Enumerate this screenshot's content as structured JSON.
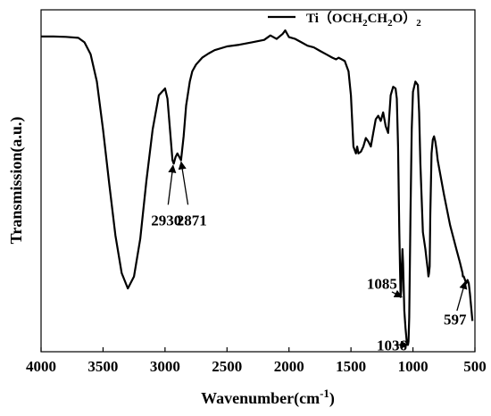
{
  "chart_data": {
    "type": "line",
    "xlabel": "Wavenumber(cm",
    "xlabel_sup": "-1",
    "xlabel_close": ")",
    "ylabel": "Transmission(a.u.)",
    "xlim": [
      4000,
      500
    ],
    "x_ticks": [
      {
        "value": 4000,
        "label": "4000"
      },
      {
        "value": 3500,
        "label": "3500"
      },
      {
        "value": 3000,
        "label": "3000"
      },
      {
        "value": 2500,
        "label": "2500"
      },
      {
        "value": 2000,
        "label": "2000"
      },
      {
        "value": 1500,
        "label": "1500"
      },
      {
        "value": 1000,
        "label": "1000"
      },
      {
        "value": 500,
        "label": "500"
      }
    ],
    "ylim": [
      0,
      1
    ],
    "y_ticks_shown": false,
    "legend": {
      "position": "top-right"
    },
    "series": [
      {
        "name_parts": [
          {
            "t": "Ti（OCH",
            "sub": false
          },
          {
            "t": "2",
            "sub": true
          },
          {
            "t": "CH",
            "sub": false
          },
          {
            "t": "2",
            "sub": true
          },
          {
            "t": "O）",
            "sub": false
          },
          {
            "t": "2",
            "sub": true
          }
        ],
        "color": "#000000",
        "x": [
          4000,
          3900,
          3800,
          3700,
          3650,
          3600,
          3550,
          3500,
          3450,
          3400,
          3350,
          3300,
          3250,
          3200,
          3150,
          3100,
          3050,
          3000,
          2980,
          2960,
          2940,
          2930,
          2915,
          2900,
          2885,
          2871,
          2850,
          2830,
          2800,
          2780,
          2750,
          2700,
          2650,
          2600,
          2500,
          2400,
          2300,
          2200,
          2150,
          2100,
          2050,
          2030,
          2000,
          1950,
          1900,
          1850,
          1800,
          1750,
          1700,
          1650,
          1620,
          1600,
          1550,
          1520,
          1500,
          1480,
          1460,
          1450,
          1440,
          1420,
          1400,
          1380,
          1360,
          1340,
          1320,
          1300,
          1280,
          1260,
          1240,
          1220,
          1200,
          1180,
          1160,
          1140,
          1130,
          1120,
          1110,
          1100,
          1095,
          1090,
          1085,
          1080,
          1070,
          1060,
          1050,
          1045,
          1040,
          1036,
          1030,
          1020,
          1010,
          1000,
          980,
          960,
          950,
          940,
          920,
          900,
          890,
          880,
          875,
          870,
          865,
          860,
          850,
          840,
          830,
          820,
          810,
          800,
          780,
          750,
          700,
          650,
          620,
          600,
          597,
          590,
          580,
          570,
          560,
          550,
          540,
          530,
          520
        ],
        "y": [
          0.922,
          0.922,
          0.921,
          0.918,
          0.905,
          0.87,
          0.79,
          0.65,
          0.49,
          0.34,
          0.23,
          0.185,
          0.22,
          0.33,
          0.5,
          0.65,
          0.75,
          0.77,
          0.74,
          0.65,
          0.56,
          0.55,
          0.57,
          0.58,
          0.57,
          0.56,
          0.63,
          0.72,
          0.79,
          0.82,
          0.84,
          0.86,
          0.872,
          0.882,
          0.893,
          0.898,
          0.905,
          0.912,
          0.925,
          0.915,
          0.93,
          0.94,
          0.92,
          0.915,
          0.905,
          0.895,
          0.89,
          0.88,
          0.87,
          0.86,
          0.855,
          0.86,
          0.85,
          0.82,
          0.75,
          0.6,
          0.58,
          0.6,
          0.58,
          0.585,
          0.6,
          0.625,
          0.615,
          0.6,
          0.64,
          0.68,
          0.69,
          0.675,
          0.7,
          0.66,
          0.64,
          0.75,
          0.775,
          0.77,
          0.74,
          0.6,
          0.35,
          0.16,
          0.18,
          0.25,
          0.3,
          0.26,
          0.12,
          0.07,
          0.03,
          0.02,
          0.02,
          0.03,
          0.1,
          0.4,
          0.65,
          0.76,
          0.79,
          0.78,
          0.7,
          0.55,
          0.35,
          0.3,
          0.27,
          0.24,
          0.22,
          0.23,
          0.25,
          0.4,
          0.58,
          0.62,
          0.63,
          0.615,
          0.59,
          0.56,
          0.52,
          0.46,
          0.37,
          0.3,
          0.26,
          0.23,
          0.22,
          0.22,
          0.21,
          0.2,
          0.21,
          0.2,
          0.17,
          0.13,
          0.09
        ]
      }
    ],
    "annotations": [
      {
        "label": "2930",
        "target_x": 2935,
        "target_y": 0.545,
        "text_x": 2990,
        "text_y": 0.385,
        "tail_x": 2975,
        "tail_y": 0.43
      },
      {
        "label": "2871",
        "target_x": 2870,
        "target_y": 0.555,
        "text_x": 2785,
        "text_y": 0.385,
        "tail_x": 2815,
        "tail_y": 0.43
      },
      {
        "label": "1085",
        "target_x": 1090,
        "target_y": 0.16,
        "text_x": 1250,
        "text_y": 0.2,
        "tail_x": 1170,
        "tail_y": 0.175
      },
      {
        "label": "1036",
        "target_x": 1040,
        "target_y": 0.02,
        "text_x": 1170,
        "text_y": 0.02,
        "tail_x": 1130,
        "tail_y": 0.02
      },
      {
        "label": "597",
        "target_x": 578,
        "target_y": 0.205,
        "text_x": 660,
        "text_y": 0.095,
        "tail_x": 645,
        "tail_y": 0.12
      }
    ]
  }
}
